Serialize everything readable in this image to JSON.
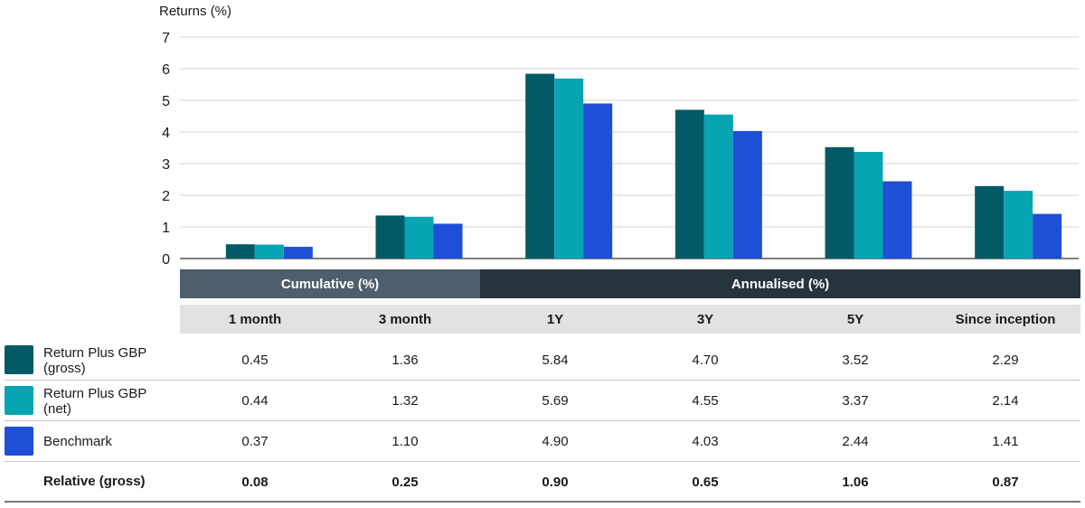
{
  "chart_data": {
    "type": "bar",
    "ylabel": "Returns (%)",
    "ylim": [
      0,
      7
    ],
    "yticks": [
      0,
      1,
      2,
      3,
      4,
      5,
      6,
      7
    ],
    "grid": true,
    "categories": [
      "1 month",
      "3 month",
      "1Y",
      "3Y",
      "5Y",
      "Since inception"
    ],
    "series": [
      {
        "name": "Return Plus GBP (gross)",
        "label_line1": "Return Plus GBP",
        "label_line2": "(gross)",
        "color": "#035a66",
        "values": [
          0.45,
          1.36,
          5.84,
          4.7,
          3.52,
          2.29
        ],
        "display": [
          "0.45",
          "1.36",
          "5.84",
          "4.70",
          "3.52",
          "2.29"
        ]
      },
      {
        "name": "Return Plus GBP (net)",
        "label_line1": "Return Plus GBP",
        "label_line2": "(net)",
        "color": "#07a4b3",
        "values": [
          0.44,
          1.32,
          5.69,
          4.55,
          3.37,
          2.14
        ],
        "display": [
          "0.44",
          "1.32",
          "5.69",
          "4.55",
          "3.37",
          "2.14"
        ]
      },
      {
        "name": "Benchmark",
        "label_line1": "Benchmark",
        "label_line2": "",
        "color": "#1e4fd6",
        "values": [
          0.37,
          1.1,
          4.9,
          4.03,
          2.44,
          1.41
        ],
        "display": [
          "0.37",
          "1.10",
          "4.90",
          "4.03",
          "2.44",
          "1.41"
        ]
      }
    ],
    "groups": [
      {
        "label": "Cumulative (%)",
        "color": "#4d5f6a"
      },
      {
        "label": "Annualised (%)",
        "color": "#26343d"
      }
    ],
    "relative": {
      "label": "Relative (gross)",
      "display": [
        "0.08",
        "0.25",
        "0.90",
        "0.65",
        "1.06",
        "0.87"
      ]
    }
  }
}
